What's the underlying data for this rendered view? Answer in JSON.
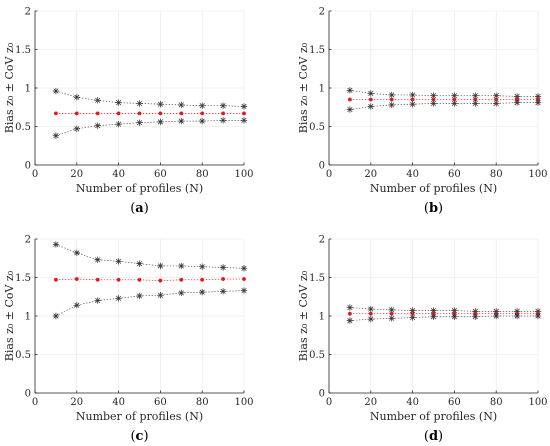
{
  "chart_data": [
    {
      "type": "line",
      "panel": "a",
      "xlabel": "Number of profiles (N)",
      "ylabel": "Bias z₀ ± CoV z₀",
      "xlim": [
        0,
        100
      ],
      "ylim": [
        0,
        2
      ],
      "xticks": [
        0,
        20,
        40,
        60,
        80,
        100
      ],
      "yticks": [
        0,
        0.5,
        1,
        1.5,
        2
      ],
      "grid": true,
      "x": [
        10,
        20,
        30,
        40,
        50,
        60,
        70,
        80,
        90,
        100
      ],
      "series": [
        {
          "role": "upper",
          "values": [
            0.96,
            0.88,
            0.84,
            0.81,
            0.8,
            0.79,
            0.78,
            0.77,
            0.77,
            0.76
          ]
        },
        {
          "role": "mean",
          "values": [
            0.67,
            0.67,
            0.67,
            0.67,
            0.67,
            0.67,
            0.67,
            0.67,
            0.67,
            0.67
          ]
        },
        {
          "role": "lower",
          "values": [
            0.38,
            0.47,
            0.51,
            0.53,
            0.55,
            0.56,
            0.57,
            0.57,
            0.58,
            0.58
          ]
        }
      ]
    },
    {
      "type": "line",
      "panel": "b",
      "xlabel": "Number of profiles (N)",
      "ylabel": "Bias z₀ ± CoV z₀",
      "xlim": [
        0,
        100
      ],
      "ylim": [
        0,
        2
      ],
      "xticks": [
        0,
        20,
        40,
        60,
        80,
        100
      ],
      "yticks": [
        0,
        0.5,
        1,
        1.5,
        2
      ],
      "grid": true,
      "x": [
        10,
        20,
        30,
        40,
        50,
        60,
        70,
        80,
        90,
        100
      ],
      "series": [
        {
          "role": "upper",
          "values": [
            0.97,
            0.93,
            0.91,
            0.91,
            0.9,
            0.9,
            0.9,
            0.9,
            0.89,
            0.89
          ]
        },
        {
          "role": "mean",
          "values": [
            0.85,
            0.85,
            0.85,
            0.85,
            0.85,
            0.85,
            0.85,
            0.85,
            0.85,
            0.85
          ]
        },
        {
          "role": "lower",
          "values": [
            0.72,
            0.76,
            0.78,
            0.79,
            0.8,
            0.8,
            0.8,
            0.8,
            0.81,
            0.81
          ]
        }
      ]
    },
    {
      "type": "line",
      "panel": "c",
      "xlabel": "Number of profiles (N)",
      "ylabel": "Bias z₀ ± CoV z₀",
      "xlim": [
        0,
        100
      ],
      "ylim": [
        0,
        2
      ],
      "xticks": [
        0,
        20,
        40,
        60,
        80,
        100
      ],
      "yticks": [
        0,
        0.5,
        1,
        1.5,
        2
      ],
      "grid": true,
      "x": [
        10,
        20,
        30,
        40,
        50,
        60,
        70,
        80,
        90,
        100
      ],
      "series": [
        {
          "role": "upper",
          "values": [
            1.93,
            1.82,
            1.73,
            1.71,
            1.68,
            1.65,
            1.65,
            1.64,
            1.63,
            1.62
          ]
        },
        {
          "role": "mean",
          "values": [
            1.47,
            1.48,
            1.47,
            1.47,
            1.47,
            1.46,
            1.47,
            1.47,
            1.48,
            1.48
          ]
        },
        {
          "role": "lower",
          "values": [
            1.0,
            1.14,
            1.2,
            1.23,
            1.26,
            1.27,
            1.3,
            1.31,
            1.32,
            1.33
          ]
        }
      ]
    },
    {
      "type": "line",
      "panel": "d",
      "xlabel": "Number of profiles (N)",
      "ylabel": "Bias z₀ ± CoV z₀",
      "xlim": [
        0,
        100
      ],
      "ylim": [
        0,
        2
      ],
      "xticks": [
        0,
        20,
        40,
        60,
        80,
        100
      ],
      "yticks": [
        0,
        0.5,
        1,
        1.5,
        2
      ],
      "grid": true,
      "x": [
        10,
        20,
        30,
        40,
        50,
        60,
        70,
        80,
        90,
        100
      ],
      "series": [
        {
          "role": "upper",
          "values": [
            1.11,
            1.09,
            1.08,
            1.07,
            1.07,
            1.07,
            1.06,
            1.06,
            1.06,
            1.06
          ]
        },
        {
          "role": "mean",
          "values": [
            1.03,
            1.03,
            1.03,
            1.03,
            1.03,
            1.03,
            1.03,
            1.03,
            1.03,
            1.03
          ]
        },
        {
          "role": "lower",
          "values": [
            0.94,
            0.96,
            0.97,
            0.98,
            0.99,
            0.99,
            0.99,
            1.0,
            1.0,
            1.0
          ]
        }
      ]
    }
  ],
  "colors": {
    "bound_marker": "#333333",
    "bound_line": "#555555",
    "mean_marker": "#e31a1c",
    "mean_line": "#e31a1c",
    "axis": "#262626",
    "grid": "#e6e6e6"
  },
  "markers": {
    "bound": "asterisk",
    "mean": "dot"
  }
}
